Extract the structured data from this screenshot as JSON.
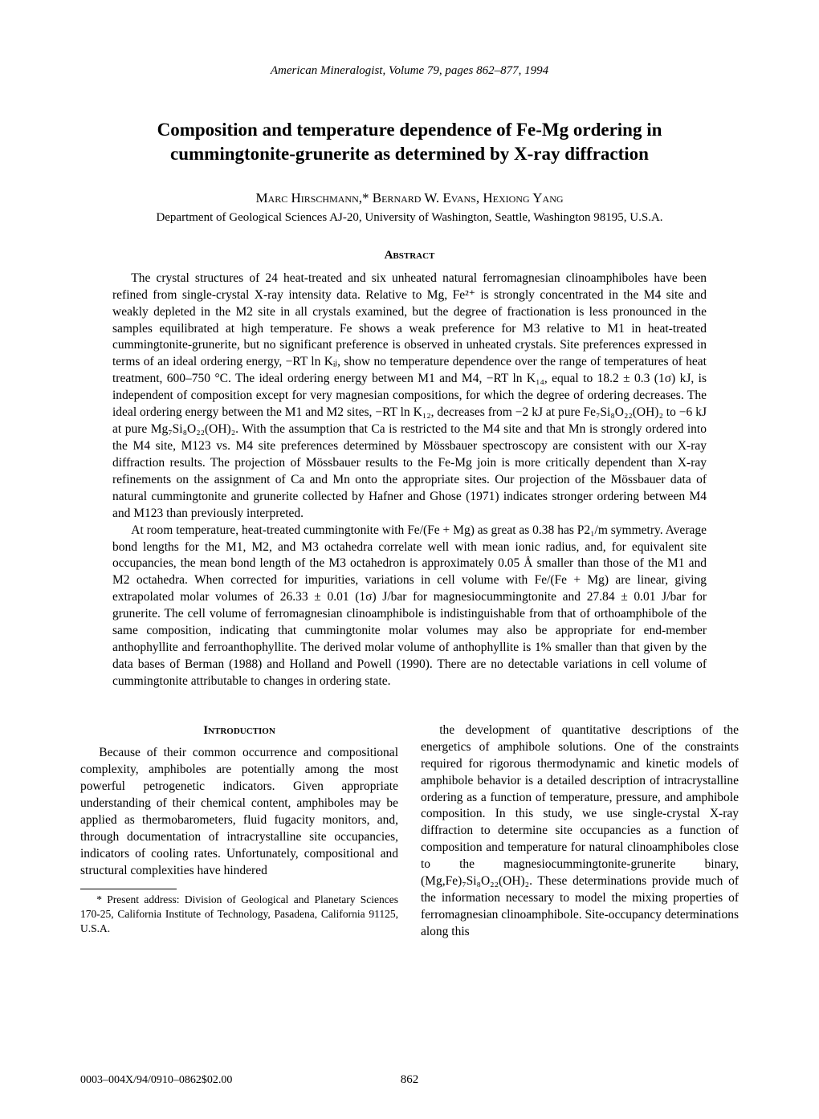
{
  "journal_header": "American Mineralogist, Volume 79, pages 862–877, 1994",
  "title": "Composition and temperature dependence of Fe-Mg ordering in cummingtonite-grunerite as determined by X-ray diffraction",
  "authors": "Marc Hirschmann,* Bernard W. Evans, Hexiong Yang",
  "affiliation": "Department of Geological Sciences AJ-20, University of Washington, Seattle, Washington 98195, U.S.A.",
  "abstract_heading": "Abstract",
  "abstract_p1": "The crystal structures of 24 heat-treated and six unheated natural ferromagnesian clinoamphiboles have been refined from single-crystal X-ray intensity data. Relative to Mg, Fe²⁺ is strongly concentrated in the M4 site and weakly depleted in the M2 site in all crystals examined, but the degree of fractionation is less pronounced in the samples equilibrated at high temperature. Fe shows a weak preference for M3 relative to M1 in heat-treated cummingtonite-grunerite, but no significant preference is observed in unheated crystals. Site preferences expressed in terms of an ideal ordering energy, −RT ln Kᵢⱼ, show no temperature dependence over the range of temperatures of heat treatment, 600–750 °C. The ideal ordering energy between M1 and M4, −RT ln K₁₄, equal to 18.2 ± 0.3 (1σ) kJ, is independent of composition except for very magnesian compositions, for which the degree of ordering decreases. The ideal ordering energy between the M1 and M2 sites, −RT ln K₁₂, decreases from −2 kJ at pure Fe₇Si₈O₂₂(OH)₂ to −6 kJ at pure Mg₇Si₈O₂₂(OH)₂. With the assumption that Ca is restricted to the M4 site and that Mn is strongly ordered into the M4 site, M123 vs. M4 site preferences determined by Mössbauer spectroscopy are consistent with our X-ray diffraction results. The projection of Mössbauer results to the Fe-Mg join is more critically dependent than X-ray refinements on the assignment of Ca and Mn onto the appropriate sites. Our projection of the Mössbauer data of natural cummingtonite and grunerite collected by Hafner and Ghose (1971) indicates stronger ordering between M4 and M123 than previously interpreted.",
  "abstract_p2": "At room temperature, heat-treated cummingtonite with Fe/(Fe + Mg) as great as 0.38 has P2₁/m symmetry. Average bond lengths for the M1, M2, and M3 octahedra correlate well with mean ionic radius, and, for equivalent site occupancies, the mean bond length of the M3 octahedron is approximately 0.05 Å smaller than those of the M1 and M2 octahedra. When corrected for impurities, variations in cell volume with Fe/(Fe + Mg) are linear, giving extrapolated molar volumes of 26.33 ± 0.01 (1σ) J/bar for magnesiocummingtonite and 27.84 ± 0.01 J/bar for grunerite. The cell volume of ferromagnesian clinoamphibole is indistinguishable from that of orthoamphibole of the same composition, indicating that cummingtonite molar volumes may also be appropriate for end-member anthophyllite and ferroanthophyllite. The derived molar volume of anthophyllite is 1% smaller than that given by the data bases of Berman (1988) and Holland and Powell (1990). There are no detectable variations in cell volume of cummingtonite attributable to changes in ordering state.",
  "intro_heading": "Introduction",
  "intro_left": "Because of their common occurrence and compositional complexity, amphiboles are potentially among the most powerful petrogenetic indicators. Given appropriate understanding of their chemical content, amphiboles may be applied as thermobarometers, fluid fugacity monitors, and, through documentation of intracrystalline site occupancies, indicators of cooling rates. Unfortunately, compositional and structural complexities have hindered",
  "intro_right": "the development of quantitative descriptions of the energetics of amphibole solutions. One of the constraints required for rigorous thermodynamic and kinetic models of amphibole behavior is a detailed description of intracrystalline ordering as a function of temperature, pressure, and amphibole composition. In this study, we use single-crystal X-ray diffraction to determine site occupancies as a function of composition and temperature for natural clinoamphiboles close to the magnesiocummingtonite-grunerite binary, (Mg,Fe)₇Si₈O₂₂(OH)₂. These determinations provide much of the information necessary to model the mixing properties of ferromagnesian clinoamphibole. Site-occupancy determinations along this",
  "footnote": "* Present address: Division of Geological and Planetary Sciences 170-25, California Institute of Technology, Pasadena, California 91125, U.S.A.",
  "footer_left": "0003–004X/94/0910–0862$02.00",
  "footer_center": "862"
}
